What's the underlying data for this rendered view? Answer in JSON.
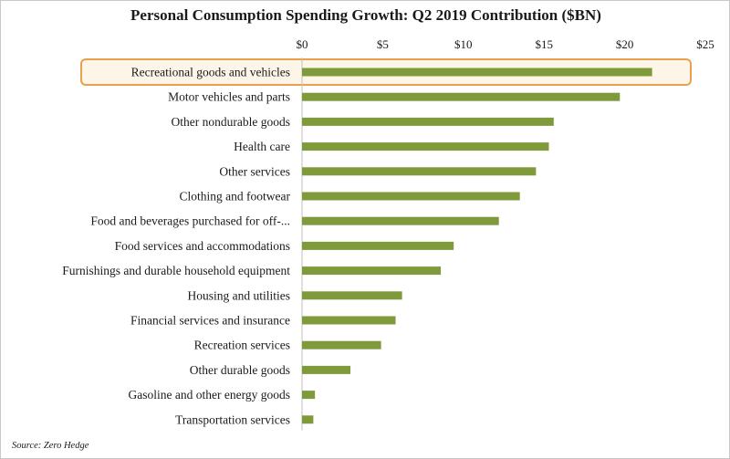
{
  "chart_data": {
    "type": "bar",
    "orientation": "horizontal",
    "title": "Personal Consumption Spending Growth: Q2 2019 Contribution ($BN)",
    "xlabel": "",
    "ylabel": "",
    "xlim": [
      0,
      25
    ],
    "tick_values": [
      0,
      5,
      10,
      15,
      20,
      25
    ],
    "tick_labels": [
      "$0",
      "$5",
      "$10",
      "$15",
      "$20",
      "$25"
    ],
    "axis_position": "top",
    "grid": false,
    "bar_color": "#7f9a3a",
    "highlight_color": "#e8a04a",
    "highlight_fill": "#fdf6e8",
    "highlight_category": "Recreational goods and vehicles",
    "categories": [
      "Recreational goods and vehicles",
      "Motor vehicles and parts",
      "Other nondurable goods",
      "Health care",
      "Other services",
      "Clothing and footwear",
      "Food and beverages purchased for off-...",
      "Food services and accommodations",
      "Furnishings and durable household equipment",
      "Housing and utilities",
      "Financial services and insurance",
      "Recreation services",
      "Other durable goods",
      "Gasoline and other energy goods",
      "Transportation services"
    ],
    "values": [
      21.7,
      19.7,
      15.6,
      15.3,
      14.5,
      13.5,
      12.2,
      9.4,
      8.6,
      6.2,
      5.8,
      4.9,
      3.0,
      0.8,
      0.7
    ]
  },
  "source": "Source: Zero Hedge"
}
